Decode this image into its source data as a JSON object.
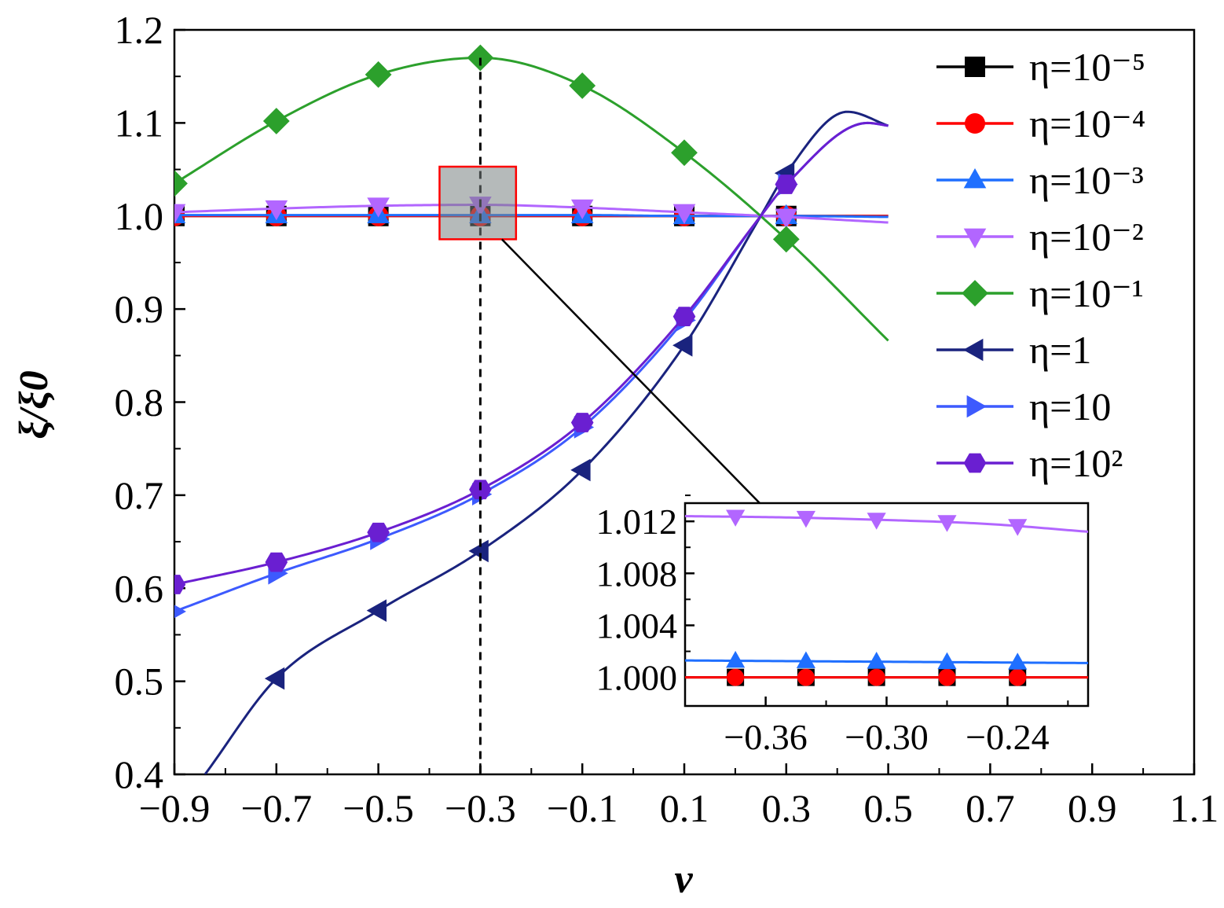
{
  "chart_data": {
    "type": "line",
    "title": "",
    "xlabel": "ν",
    "ylabel": "ξ/ξ0",
    "xlim": [
      -0.9,
      1.1
    ],
    "ylim": [
      0.4,
      1.2
    ],
    "x_ticks": [
      "−0.9",
      "−0.7",
      "−0.5",
      "−0.3",
      "−0.1",
      "0.1",
      "0.3",
      "0.5",
      "0.7",
      "0.9",
      "1.1"
    ],
    "y_ticks": [
      "0.4",
      "0.5",
      "0.6",
      "0.7",
      "0.8",
      "0.9",
      "1.0",
      "1.1",
      "1.2"
    ],
    "x_tick_values": [
      -0.9,
      -0.7,
      -0.5,
      -0.3,
      -0.1,
      0.1,
      0.3,
      0.5,
      0.7,
      0.9,
      1.1
    ],
    "y_tick_values": [
      0.4,
      0.5,
      0.6,
      0.7,
      0.8,
      0.9,
      1.0,
      1.1,
      1.2
    ],
    "grid": false,
    "legend_position": "top-right",
    "reference_line": {
      "x": -0.3,
      "style": "dashed"
    },
    "zoom_box": {
      "x": [
        -0.38,
        -0.23
      ],
      "y": [
        0.975,
        1.053
      ]
    },
    "series": [
      {
        "name": "η=10⁻⁵",
        "color": "#000000",
        "marker": "square",
        "x": [
          -0.9,
          -0.7,
          -0.5,
          -0.3,
          -0.1,
          0.1,
          0.3,
          0.5
        ],
        "y": [
          1.0,
          1.0,
          1.0,
          1.0,
          1.0,
          1.0,
          1.0,
          1.0
        ],
        "marked_x": [
          -0.9,
          -0.7,
          -0.5,
          -0.3,
          -0.1,
          0.1,
          0.3
        ]
      },
      {
        "name": "η=10⁻⁴",
        "color": "#ff0000",
        "marker": "circle",
        "x": [
          -0.9,
          -0.7,
          -0.5,
          -0.3,
          -0.1,
          0.1,
          0.3,
          0.5
        ],
        "y": [
          1.0,
          1.0,
          1.0,
          1.0,
          1.0,
          1.0,
          1.0,
          1.0
        ],
        "marked_x": [
          -0.9,
          -0.7,
          -0.5,
          -0.3,
          -0.1,
          0.1,
          0.3
        ]
      },
      {
        "name": "η=10⁻³",
        "color": "#1f6fff",
        "marker": "triangle-up",
        "x": [
          -0.9,
          -0.7,
          -0.5,
          -0.3,
          -0.1,
          0.1,
          0.3,
          0.5
        ],
        "y": [
          1.001,
          1.001,
          1.001,
          1.001,
          1.001,
          1.0,
          1.0,
          0.999
        ],
        "marked_x": [
          -0.9,
          -0.7,
          -0.5,
          -0.3,
          -0.1,
          0.1,
          0.3
        ]
      },
      {
        "name": "η=10⁻²",
        "color": "#b266ff",
        "marker": "triangle-down",
        "x": [
          -0.9,
          -0.7,
          -0.5,
          -0.3,
          -0.1,
          0.1,
          0.3,
          0.5
        ],
        "y": [
          1.004,
          1.008,
          1.011,
          1.012,
          1.009,
          1.004,
          0.999,
          0.993
        ],
        "marked_x": [
          -0.9,
          -0.7,
          -0.5,
          -0.3,
          -0.1,
          0.1,
          0.3
        ]
      },
      {
        "name": "η=10⁻¹",
        "color": "#2ca02c",
        "marker": "diamond",
        "x": [
          -0.9,
          -0.7,
          -0.5,
          -0.3,
          -0.1,
          0.1,
          0.3,
          0.5
        ],
        "y": [
          1.035,
          1.102,
          1.152,
          1.17,
          1.14,
          1.068,
          0.975,
          0.866
        ],
        "marked_x": [
          -0.9,
          -0.7,
          -0.5,
          -0.3,
          -0.1,
          0.1,
          0.3
        ]
      },
      {
        "name": "η=1",
        "color": "#1a237e",
        "marker": "triangle-left",
        "x": [
          -0.84,
          -0.7,
          -0.5,
          -0.3,
          -0.1,
          0.1,
          0.25,
          0.3,
          0.42,
          0.5
        ],
        "y": [
          0.4,
          0.503,
          0.576,
          0.64,
          0.727,
          0.861,
          1.0,
          1.046,
          1.112,
          1.097
        ],
        "marked_x": [
          -0.7,
          -0.5,
          -0.3,
          -0.1,
          0.1,
          0.3
        ]
      },
      {
        "name": "η=10",
        "color": "#3d5afe",
        "marker": "triangle-right",
        "x": [
          -0.9,
          -0.7,
          -0.5,
          -0.3,
          -0.1,
          0.1,
          0.25,
          0.3,
          0.46,
          0.5
        ],
        "y": [
          0.575,
          0.616,
          0.653,
          0.701,
          0.773,
          0.888,
          1.0,
          1.034,
          1.1,
          1.097
        ],
        "marked_x": [
          -0.9,
          -0.7,
          -0.5,
          -0.3,
          -0.1,
          0.1,
          0.3
        ]
      },
      {
        "name": "η=10²",
        "color": "#6a1fd1",
        "marker": "hexagon",
        "x": [
          -0.9,
          -0.7,
          -0.5,
          -0.3,
          -0.1,
          0.1,
          0.25,
          0.3,
          0.46,
          0.5
        ],
        "y": [
          0.604,
          0.628,
          0.66,
          0.706,
          0.778,
          0.892,
          1.0,
          1.034,
          1.1,
          1.097
        ],
        "marked_x": [
          -0.9,
          -0.7,
          -0.5,
          -0.3,
          -0.1,
          0.1,
          0.3
        ]
      }
    ],
    "inset": {
      "xlim": [
        -0.4,
        -0.2
      ],
      "ylim": [
        0.9978,
        1.0134
      ],
      "x_ticks": [
        "−0.36",
        "−0.30",
        "−0.24"
      ],
      "y_ticks": [
        "1.000",
        "1.004",
        "1.008",
        "1.012"
      ],
      "x_tick_values": [
        -0.36,
        -0.3,
        -0.24
      ],
      "y_tick_values": [
        1.0,
        1.004,
        1.008,
        1.012
      ],
      "marker_x": [
        -0.375,
        -0.34,
        -0.305,
        -0.27,
        -0.235
      ],
      "series": [
        {
          "ref": "η=10⁻⁵",
          "color": "#000000",
          "marker": "square",
          "x": [
            -0.4,
            -0.2
          ],
          "y": [
            1.0,
            1.0
          ]
        },
        {
          "ref": "η=10⁻⁴",
          "color": "#ff0000",
          "marker": "circle",
          "x": [
            -0.4,
            -0.2
          ],
          "y": [
            1.0,
            1.0
          ]
        },
        {
          "ref": "η=10⁻³",
          "color": "#1f6fff",
          "marker": "triangle-up",
          "x": [
            -0.4,
            -0.3,
            -0.2
          ],
          "y": [
            1.0013,
            1.0012,
            1.0011
          ]
        },
        {
          "ref": "η=10⁻²",
          "color": "#b266ff",
          "marker": "triangle-down",
          "x": [
            -0.4,
            -0.35,
            -0.3,
            -0.25,
            -0.2
          ],
          "y": [
            1.0124,
            1.0123,
            1.0121,
            1.0118,
            1.0112
          ]
        }
      ]
    }
  }
}
